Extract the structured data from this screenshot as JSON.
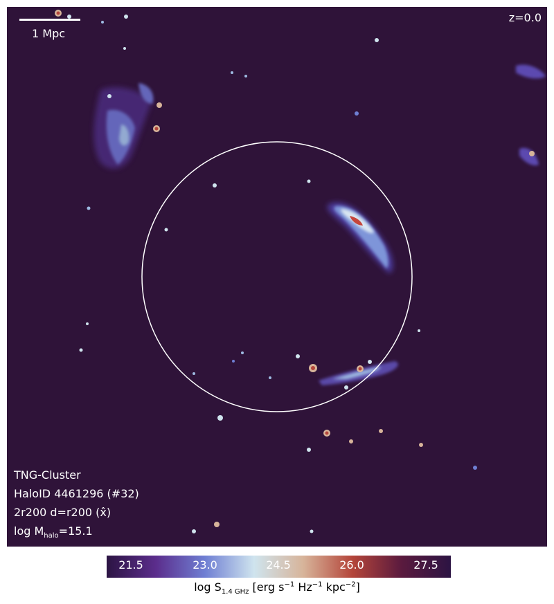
{
  "scale_bar": {
    "label": "1 Mpc"
  },
  "redshift": "z=0.0",
  "info": {
    "simulation": "TNG-Cluster",
    "halo": "HaloID 4461296 (#32)",
    "projection_prefix": "2r200 d=r200 (",
    "projection_axis": "x̂",
    "projection_suffix": ")",
    "mass_prefix": "log M",
    "mass_sub": "halo",
    "mass_value": "=15.1"
  },
  "colorbar": {
    "ticks": [
      "21.5",
      "23.0",
      "24.5",
      "26.0",
      "27.5"
    ],
    "label_prefix": "log S",
    "label_sub": "1.4 GHz",
    "label_unit_a": " [erg s",
    "label_exp_a": "−1",
    "label_unit_b": " Hz",
    "label_exp_b": "−1",
    "label_unit_c": " kpc",
    "label_exp_c": "−2",
    "label_end": "]",
    "colors": [
      "#2c1443",
      "#5b2d8c",
      "#6f7fd3",
      "#cfe4ee",
      "#d7b49a",
      "#b4453a",
      "#5a1a3e",
      "#2c1443"
    ]
  },
  "background_color": "#2f1339"
}
